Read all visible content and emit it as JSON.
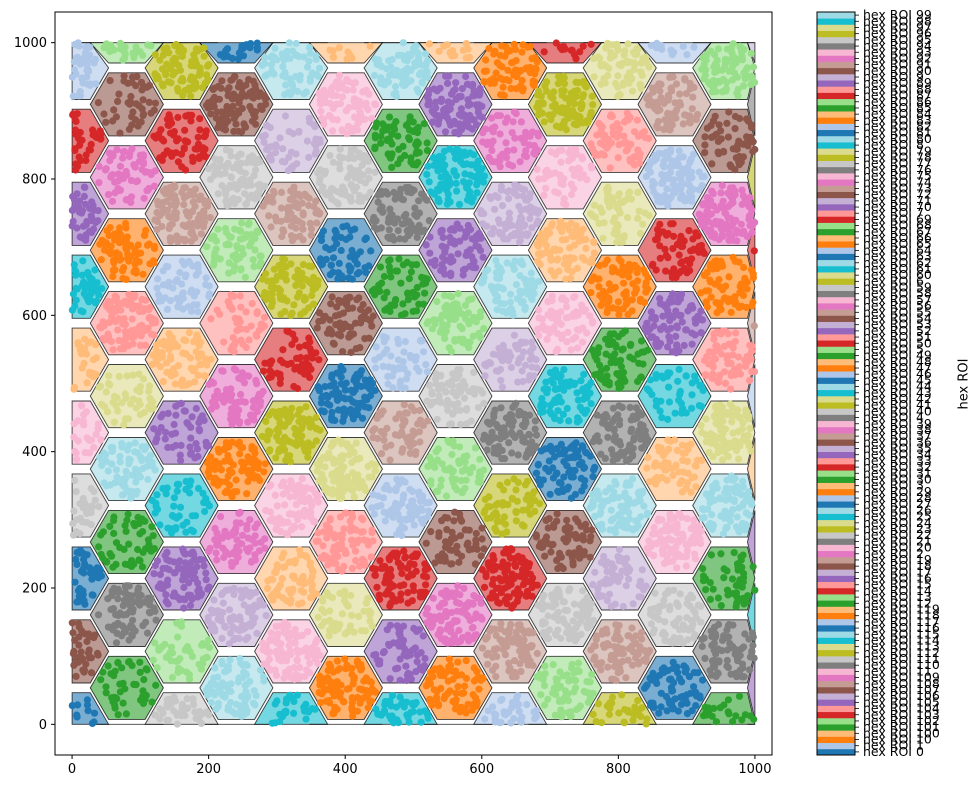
{
  "chart_data": {
    "type": "scatter",
    "title": "",
    "xlabel": "",
    "ylabel": "",
    "xlim": [
      -25,
      1025
    ],
    "ylim": [
      -45,
      1045
    ],
    "x_ticks": [
      0,
      200,
      400,
      600,
      800,
      1000
    ],
    "y_ticks": [
      0,
      200,
      400,
      600,
      800,
      1000
    ],
    "grid": false,
    "description_of_marks": "hexagonal ROI tiling over [0,1000]x[0,1000]; each hexagon filled with a translucent tab20 color and overlaid with jittered scatter points in the same color",
    "hex_grid": {
      "x_range": [
        0,
        1000
      ],
      "y_range": [
        0,
        1000
      ],
      "hex_circumradius": 53.5,
      "column_spacing": 80.2,
      "row_spacing": 107,
      "num_rois": 120,
      "points_per_roi": 70
    },
    "colormap": "tab20",
    "palette": [
      "#1f77b4",
      "#aec7e8",
      "#ff7f0e",
      "#ffbb78",
      "#2ca02c",
      "#98df8a",
      "#d62728",
      "#ff9896",
      "#9467bd",
      "#c5b0d5",
      "#8c564b",
      "#c49c94",
      "#e377c2",
      "#f7b6d2",
      "#7f7f7f",
      "#c7c7c7",
      "#bcbd22",
      "#dbdb8d",
      "#17becf",
      "#9edae5"
    ],
    "colorbar": {
      "title": "hex ROI",
      "labels": [
        "hex ROI 0",
        "hex ROI 1",
        "hex ROI 10",
        "hex ROI 100",
        "hex ROI 101",
        "hex ROI 102",
        "hex ROI 103",
        "hex ROI 104",
        "hex ROI 105",
        "hex ROI 106",
        "hex ROI 107",
        "hex ROI 108",
        "hex ROI 109",
        "hex ROI 11",
        "hex ROI 110",
        "hex ROI 111",
        "hex ROI 112",
        "hex ROI 113",
        "hex ROI 114",
        "hex ROI 115",
        "hex ROI 116",
        "hex ROI 117",
        "hex ROI 118",
        "hex ROI 119",
        "hex ROI 12",
        "hex ROI 13",
        "hex ROI 14",
        "hex ROI 15",
        "hex ROI 16",
        "hex ROI 17",
        "hex ROI 18",
        "hex ROI 19",
        "hex ROI 2",
        "hex ROI 20",
        "hex ROI 21",
        "hex ROI 22",
        "hex ROI 23",
        "hex ROI 24",
        "hex ROI 25",
        "hex ROI 26",
        "hex ROI 27",
        "hex ROI 28",
        "hex ROI 29",
        "hex ROI 3",
        "hex ROI 30",
        "hex ROI 31",
        "hex ROI 32",
        "hex ROI 33",
        "hex ROI 34",
        "hex ROI 35",
        "hex ROI 36",
        "hex ROI 37",
        "hex ROI 38",
        "hex ROI 39",
        "hex ROI 4",
        "hex ROI 40",
        "hex ROI 41",
        "hex ROI 42",
        "hex ROI 43",
        "hex ROI 44",
        "hex ROI 45",
        "hex ROI 46",
        "hex ROI 47",
        "hex ROI 48",
        "hex ROI 49",
        "hex ROI 5",
        "hex ROI 50",
        "hex ROI 51",
        "hex ROI 52",
        "hex ROI 53",
        "hex ROI 54",
        "hex ROI 55",
        "hex ROI 56",
        "hex ROI 57",
        "hex ROI 58",
        "hex ROI 59",
        "hex ROI 6",
        "hex ROI 60",
        "hex ROI 61",
        "hex ROI 62",
        "hex ROI 63",
        "hex ROI 64",
        "hex ROI 65",
        "hex ROI 66",
        "hex ROI 67",
        "hex ROI 68",
        "hex ROI 69",
        "hex ROI 7",
        "hex ROI 70",
        "hex ROI 71",
        "hex ROI 72",
        "hex ROI 73",
        "hex ROI 74",
        "hex ROI 75",
        "hex ROI 76",
        "hex ROI 77",
        "hex ROI 78",
        "hex ROI 79",
        "hex ROI 8",
        "hex ROI 80",
        "hex ROI 81",
        "hex ROI 82",
        "hex ROI 83",
        "hex ROI 84",
        "hex ROI 85",
        "hex ROI 86",
        "hex ROI 87",
        "hex ROI 88",
        "hex ROI 89",
        "hex ROI 9",
        "hex ROI 90",
        "hex ROI 91",
        "hex ROI 92",
        "hex ROI 93",
        "hex ROI 94",
        "hex ROI 95",
        "hex ROI 96",
        "hex ROI 97",
        "hex ROI 98",
        "hex ROI 99"
      ]
    }
  }
}
